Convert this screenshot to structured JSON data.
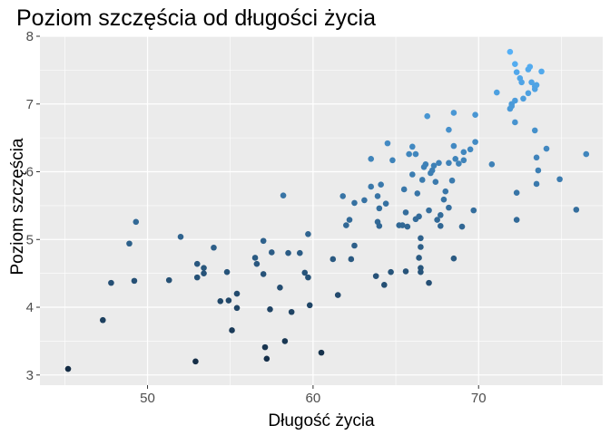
{
  "chart_data": {
    "type": "scatter",
    "title": "Poziom szczęścia od długości życia",
    "xlabel": "Długość życia",
    "ylabel": "Poziom szczęścia",
    "xlim": [
      43.5,
      77.5
    ],
    "ylim": [
      2.85,
      8.0
    ],
    "xticks": [
      50,
      60,
      70
    ],
    "yticks": [
      3,
      4,
      5,
      6,
      7,
      8
    ],
    "grid": true,
    "panel_background": "#ebebeb",
    "grid_color": "#ffffff",
    "point_color_low": "#132b43",
    "point_color_high": "#56b1f7",
    "points": [
      [
        45.2,
        3.09
      ],
      [
        47.3,
        3.81
      ],
      [
        47.8,
        4.36
      ],
      [
        48.9,
        4.94
      ],
      [
        49.2,
        4.39
      ],
      [
        49.3,
        5.26
      ],
      [
        51.3,
        4.4
      ],
      [
        52.0,
        5.04
      ],
      [
        52.9,
        3.2
      ],
      [
        53.0,
        4.64
      ],
      [
        53.0,
        4.44
      ],
      [
        53.4,
        4.58
      ],
      [
        53.4,
        4.5
      ],
      [
        54.0,
        4.88
      ],
      [
        54.4,
        4.09
      ],
      [
        54.8,
        4.52
      ],
      [
        54.9,
        4.1
      ],
      [
        55.1,
        3.66
      ],
      [
        55.4,
        4.2
      ],
      [
        55.4,
        3.99
      ],
      [
        56.5,
        4.73
      ],
      [
        56.6,
        4.64
      ],
      [
        57.0,
        4.49
      ],
      [
        57.0,
        4.98
      ],
      [
        57.1,
        3.41
      ],
      [
        57.2,
        3.24
      ],
      [
        57.4,
        3.97
      ],
      [
        57.5,
        4.81
      ],
      [
        58.0,
        4.29
      ],
      [
        58.2,
        5.65
      ],
      [
        58.3,
        3.5
      ],
      [
        58.5,
        4.8
      ],
      [
        58.7,
        3.93
      ],
      [
        59.2,
        4.8
      ],
      [
        59.5,
        4.51
      ],
      [
        59.7,
        4.44
      ],
      [
        59.7,
        5.08
      ],
      [
        59.8,
        4.03
      ],
      [
        60.5,
        3.33
      ],
      [
        61.2,
        4.71
      ],
      [
        61.5,
        4.18
      ],
      [
        61.8,
        5.64
      ],
      [
        62.0,
        5.21
      ],
      [
        62.2,
        5.29
      ],
      [
        62.3,
        4.71
      ],
      [
        62.5,
        4.91
      ],
      [
        62.5,
        5.54
      ],
      [
        63.1,
        5.58
      ],
      [
        63.5,
        5.78
      ],
      [
        63.5,
        6.19
      ],
      [
        63.8,
        4.46
      ],
      [
        63.9,
        5.64
      ],
      [
        63.9,
        5.26
      ],
      [
        64.0,
        5.2
      ],
      [
        64.0,
        5.46
      ],
      [
        64.1,
        5.81
      ],
      [
        64.3,
        4.33
      ],
      [
        64.4,
        5.53
      ],
      [
        64.5,
        6.42
      ],
      [
        64.7,
        4.52
      ],
      [
        64.8,
        6.17
      ],
      [
        65.2,
        5.21
      ],
      [
        65.4,
        5.21
      ],
      [
        65.5,
        5.74
      ],
      [
        65.6,
        4.53
      ],
      [
        65.6,
        5.4
      ],
      [
        65.7,
        5.19
      ],
      [
        65.8,
        6.26
      ],
      [
        66.0,
        5.96
      ],
      [
        66.0,
        6.37
      ],
      [
        66.2,
        6.26
      ],
      [
        66.2,
        5.3
      ],
      [
        66.3,
        5.68
      ],
      [
        66.4,
        4.73
      ],
      [
        66.4,
        5.34
      ],
      [
        66.5,
        4.89
      ],
      [
        66.5,
        5.02
      ],
      [
        66.5,
        4.58
      ],
      [
        66.5,
        4.52
      ],
      [
        66.6,
        5.88
      ],
      [
        66.7,
        6.07
      ],
      [
        66.8,
        6.11
      ],
      [
        66.9,
        6.82
      ],
      [
        67.0,
        4.36
      ],
      [
        67.0,
        5.43
      ],
      [
        67.1,
        5.98
      ],
      [
        67.2,
        6.02
      ],
      [
        67.3,
        6.09
      ],
      [
        67.4,
        5.85
      ],
      [
        67.5,
        5.29
      ],
      [
        67.6,
        6.13
      ],
      [
        67.7,
        5.36
      ],
      [
        67.7,
        5.2
      ],
      [
        67.9,
        5.59
      ],
      [
        68.0,
        5.71
      ],
      [
        68.2,
        6.62
      ],
      [
        68.2,
        6.13
      ],
      [
        68.2,
        5.47
      ],
      [
        68.4,
        5.87
      ],
      [
        68.5,
        6.38
      ],
      [
        68.5,
        6.87
      ],
      [
        68.5,
        4.72
      ],
      [
        68.6,
        6.19
      ],
      [
        68.8,
        6.12
      ],
      [
        69.1,
        6.17
      ],
      [
        69.1,
        6.29
      ],
      [
        69.0,
        5.19
      ],
      [
        69.5,
        6.33
      ],
      [
        69.7,
        5.43
      ],
      [
        69.8,
        6.84
      ],
      [
        69.8,
        6.44
      ],
      [
        70.8,
        6.11
      ],
      [
        71.1,
        7.17
      ],
      [
        71.9,
        6.93
      ],
      [
        71.9,
        7.77
      ],
      [
        72.0,
        7.0
      ],
      [
        72.0,
        6.97
      ],
      [
        72.2,
        7.59
      ],
      [
        72.2,
        7.05
      ],
      [
        72.2,
        6.73
      ],
      [
        72.3,
        5.29
      ],
      [
        72.3,
        7.47
      ],
      [
        72.3,
        5.69
      ],
      [
        72.5,
        7.38
      ],
      [
        72.6,
        7.32
      ],
      [
        72.7,
        7.08
      ],
      [
        73.0,
        7.16
      ],
      [
        73.0,
        7.51
      ],
      [
        73.1,
        7.55
      ],
      [
        73.2,
        7.32
      ],
      [
        73.4,
        7.26
      ],
      [
        73.4,
        7.22
      ],
      [
        73.4,
        6.61
      ],
      [
        73.5,
        6.21
      ],
      [
        73.5,
        7.28
      ],
      [
        73.5,
        5.82
      ],
      [
        73.6,
        6.02
      ],
      [
        73.8,
        7.48
      ],
      [
        74.1,
        6.34
      ],
      [
        74.9,
        5.89
      ],
      [
        75.9,
        5.44
      ],
      [
        76.5,
        6.26
      ]
    ]
  }
}
